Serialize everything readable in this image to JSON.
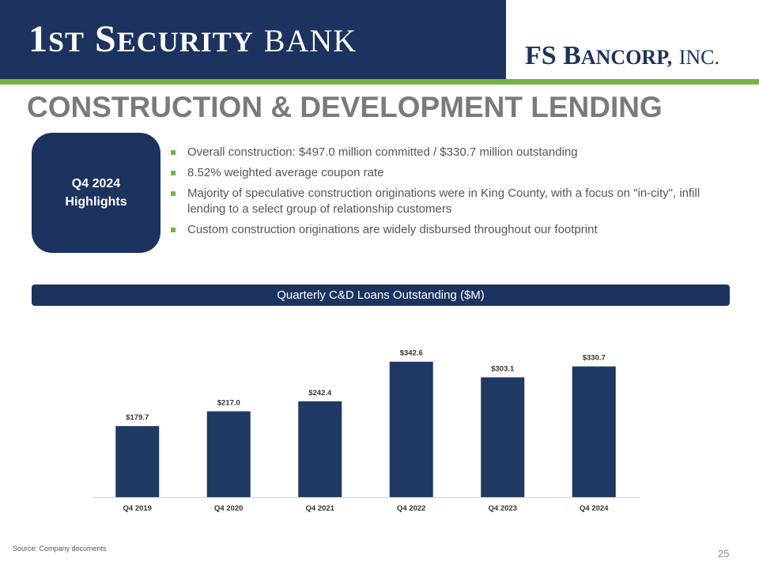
{
  "header": {
    "bank_name_big": "1",
    "bank_name_rest": "ST",
    "bank_name_word2_big": "S",
    "bank_name_word2_rest": "ECURITY",
    "bank_name_word3": "BANK",
    "corp_big": "FS B",
    "corp_rest": "ANCORP,",
    "corp_inc": "INC."
  },
  "title": "CONSTRUCTION &  DEVELOPMENT LENDING",
  "highlights": {
    "line1": "Q4 2024",
    "line2": "Highlights",
    "bullets": [
      "Overall construction: $497.0 million committed / $330.7 million outstanding",
      "8.52% weighted average coupon rate",
      "Majority of speculative construction originations were in King County, with a focus on \"in-city\", infill lending to a select group of  relationship customers",
      "Custom construction originations are widely disbursed throughout our footprint"
    ]
  },
  "chart_banner": "Quarterly C&D Loans Outstanding ($M)",
  "chart_data": {
    "type": "bar",
    "categories": [
      "Q4 2019",
      "Q4 2020",
      "Q4 2021",
      "Q4 2022",
      "Q4 2023",
      "Q4 2024"
    ],
    "values": [
      179.7,
      217.0,
      242.4,
      342.6,
      303.1,
      330.7
    ],
    "labels": [
      "$179.7",
      "$217.0",
      "$242.4",
      "$342.6",
      "$303.1",
      "$330.7"
    ],
    "ylim": [
      0,
      364
    ],
    "color": "#1f3864",
    "grid": false
  },
  "footer": {
    "source": "Source: Company documents",
    "page_number": "25"
  },
  "colors": {
    "navy": "#1c3360",
    "green": "#78b343",
    "title_gray": "#7a7a7a"
  }
}
